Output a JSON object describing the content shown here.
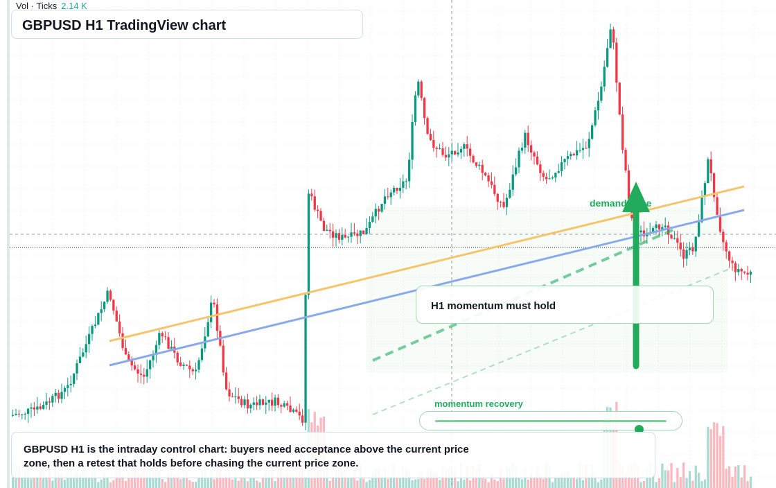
{
  "volume_legend": {
    "label": "Vol · Ticks",
    "value": "2.14 K"
  },
  "chart": {
    "title": "GBPUSD H1 TradingView chart"
  },
  "annotations": {
    "demand_zone_label": "demand zone",
    "momentum_note": "H1 momentum must hold",
    "recovery_label": "momentum recovery",
    "recovery_level": 0.88
  },
  "summary": {
    "text": "GBPUSD H1 is the intraday control chart: buyers need acceptance above the current price zone, then a retest that holds before chasing the current price zone."
  },
  "colors": {
    "up": "#089981",
    "down": "#f23645",
    "trend_orange": "#f6c46a",
    "trend_blue": "#8aa9ec",
    "annotation_green": "#22ab5c"
  },
  "chart_data": {
    "type": "candlestick",
    "symbol": "GBPUSD",
    "timeframe": "H1",
    "title": "GBPUSD H1 TradingView chart",
    "volume_value": "2.14 K",
    "trend_lines": [
      {
        "name": "",
        "color": "#f6c46a"
      },
      {
        "name": "",
        "color": "#8aa9ec"
      }
    ]
  }
}
